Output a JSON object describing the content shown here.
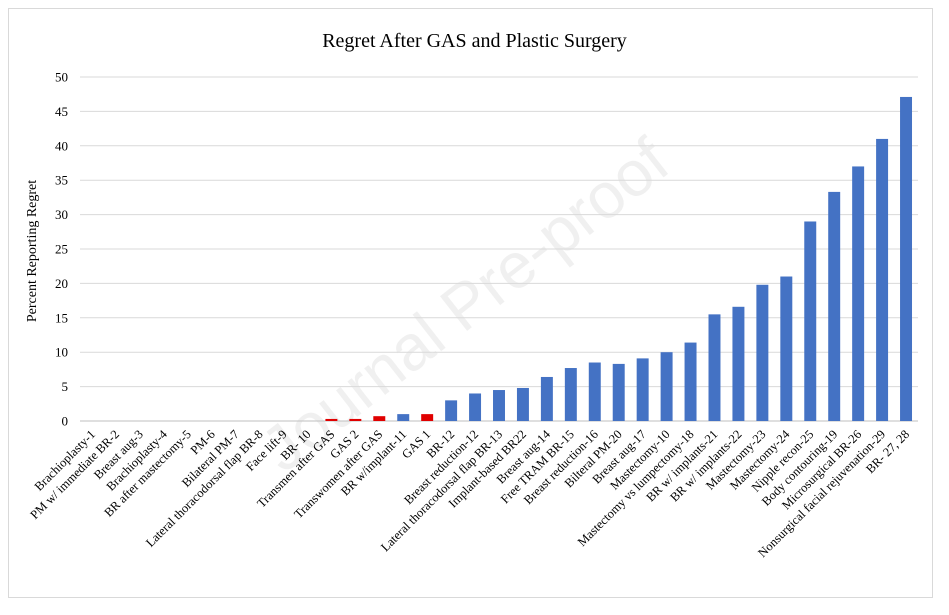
{
  "chart_data": {
    "type": "bar",
    "title": "Regret After GAS and Plastic Surgery",
    "xlabel": "",
    "ylabel": "Percent Reporting Regret",
    "ylim": [
      0,
      50
    ],
    "yticks": [
      0,
      5,
      10,
      15,
      20,
      25,
      30,
      35,
      40,
      45,
      50
    ],
    "grid": true,
    "legend": "none",
    "categories": [
      "Brachioplasty-1",
      "PM w/ immediate BR-2",
      "Breast aug-3",
      "Brachioplasty-4",
      "BR after mastectomy-5",
      "PM-6",
      "Bilateral PM-7",
      "Lateral thoracodorsal flap BR-8",
      "Face lift-9",
      "BR- 10",
      "Transmen after GAS",
      "GAS 2",
      "Transwomen after GAS",
      "BR w/implant-11",
      "GAS 1",
      "BR-12",
      "Breast reduction-12",
      "Lateral thoracodorsal flap BR-13",
      "Implant-based BR22",
      "Breast aug-14",
      "Free TRAM BR-15",
      "Breast reduction-16",
      "Bilteral PM-20",
      "Breast aug-17",
      "Mastectomy-10",
      "Mastectomy vs lumpectomy-18",
      "BR w/ implants-21",
      "BR w/ implants-22",
      "Mastectomy-23",
      "Mastectomy-24",
      "Nipple recon-25",
      "Body contouring-19",
      "Microsurgical BR-26",
      "Nonsurgical facial rejuvenation-29",
      "BR- 27, 28"
    ],
    "values": [
      0,
      0,
      0,
      0,
      0,
      0,
      0,
      0,
      0,
      0,
      0.3,
      0.3,
      0.7,
      1.0,
      1.0,
      3.0,
      4.0,
      4.5,
      4.8,
      6.4,
      7.7,
      8.5,
      8.3,
      9.1,
      10.0,
      11.4,
      15.5,
      16.6,
      19.8,
      21.0,
      29.0,
      33.3,
      37.0,
      41.0,
      47.1
    ],
    "highlight_categories": [
      "Transmen after GAS",
      "GAS 2",
      "Transwomen after GAS",
      "GAS 1"
    ],
    "colors": {
      "bar": "#4472c4",
      "highlight": "#e00000",
      "grid": "#d9d9d9",
      "axis": "#bfbfbf"
    }
  },
  "watermark": "Journal Pre-proof"
}
